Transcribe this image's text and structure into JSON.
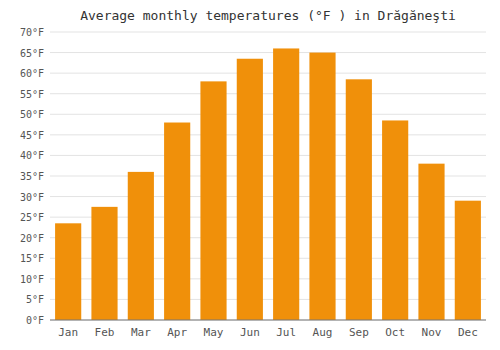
{
  "chart_data": {
    "type": "bar",
    "title": "Average monthly temperatures (°F ) in Drăgăneşti",
    "categories": [
      "Jan",
      "Feb",
      "Mar",
      "Apr",
      "May",
      "Jun",
      "Jul",
      "Aug",
      "Sep",
      "Oct",
      "Nov",
      "Dec"
    ],
    "values": [
      23.5,
      27.5,
      36.0,
      48.0,
      58.0,
      63.5,
      66.0,
      65.0,
      58.5,
      48.5,
      38.0,
      29.0
    ],
    "color": "#F0900A",
    "ylim": [
      0,
      70
    ],
    "yticks": [
      {
        "value": 0,
        "label": "0°F"
      },
      {
        "value": 5,
        "label": "5°F"
      },
      {
        "value": 10,
        "label": "10°F"
      },
      {
        "value": 15,
        "label": "15°F"
      },
      {
        "value": 20,
        "label": "20°F"
      },
      {
        "value": 25,
        "label": "25°F"
      },
      {
        "value": 30,
        "label": "30°F"
      },
      {
        "value": 35,
        "label": "35°F"
      },
      {
        "value": 40,
        "label": "40°F"
      },
      {
        "value": 45,
        "label": "45°F"
      },
      {
        "value": 50,
        "label": "50°F"
      },
      {
        "value": 55,
        "label": "55°F"
      },
      {
        "value": 60,
        "label": "60°F"
      },
      {
        "value": 65,
        "label": "65°F"
      },
      {
        "value": 70,
        "label": "70°F"
      }
    ],
    "grid": true
  }
}
